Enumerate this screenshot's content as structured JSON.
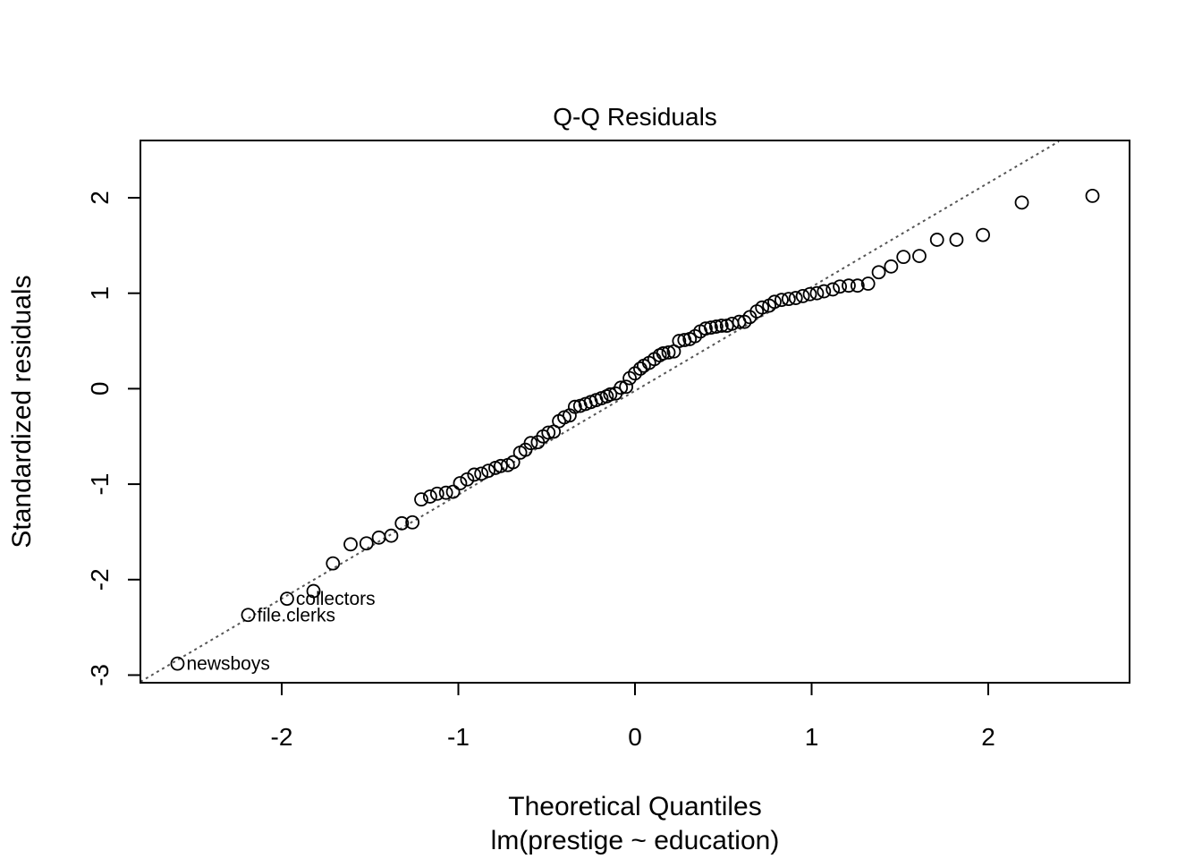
{
  "chart_data": {
    "type": "scatter",
    "title": "Q-Q Residuals",
    "xlabel": "Theoretical Quantiles",
    "sublabel": "lm(prestige ~ education)",
    "ylabel": "Standardized residuals",
    "xlim": [
      -2.8,
      2.8
    ],
    "ylim": [
      -3.08,
      2.6
    ],
    "x_ticks": [
      -2,
      -1,
      0,
      1,
      2
    ],
    "x_tick_labels": [
      "-2",
      "-1",
      "0",
      "1",
      "2"
    ],
    "y_ticks": [
      -3,
      -2,
      -1,
      0,
      1,
      2
    ],
    "y_tick_labels": [
      "-3",
      "-2",
      "-1",
      "0",
      "1",
      "2"
    ],
    "grid": false,
    "reference_line": {
      "style": "dotted",
      "color": "#555555",
      "points": [
        [
          -2.8,
          -3.07
        ],
        [
          2.4,
          2.59
        ]
      ]
    },
    "points": {
      "x": [
        -2.59,
        -2.19,
        -1.97,
        -1.82,
        -1.71,
        -1.61,
        -1.52,
        -1.45,
        -1.38,
        -1.32,
        -1.26,
        -1.21,
        -1.16,
        -1.12,
        -1.07,
        -1.03,
        -0.99,
        -0.95,
        -0.91,
        -0.87,
        -0.83,
        -0.79,
        -0.76,
        -0.72,
        -0.69,
        -0.65,
        -0.62,
        -0.59,
        -0.55,
        -0.52,
        -0.49,
        -0.46,
        -0.43,
        -0.4,
        -0.37,
        -0.34,
        -0.31,
        -0.28,
        -0.25,
        -0.22,
        -0.19,
        -0.16,
        -0.14,
        -0.11,
        -0.08,
        -0.05,
        -0.03,
        0.0,
        0.03,
        0.05,
        0.08,
        0.11,
        0.14,
        0.16,
        0.19,
        0.22,
        0.25,
        0.28,
        0.31,
        0.34,
        0.37,
        0.4,
        0.43,
        0.46,
        0.49,
        0.52,
        0.55,
        0.59,
        0.62,
        0.65,
        0.69,
        0.72,
        0.76,
        0.79,
        0.83,
        0.87,
        0.91,
        0.95,
        0.99,
        1.03,
        1.07,
        1.12,
        1.16,
        1.21,
        1.26,
        1.32,
        1.38,
        1.45,
        1.52,
        1.61,
        1.71,
        1.82,
        1.97,
        2.19,
        2.59
      ],
      "y": [
        -2.88,
        -2.37,
        -2.2,
        -2.12,
        -1.83,
        -1.63,
        -1.62,
        -1.56,
        -1.54,
        -1.41,
        -1.4,
        -1.16,
        -1.13,
        -1.1,
        -1.09,
        -1.08,
        -0.99,
        -0.95,
        -0.9,
        -0.89,
        -0.86,
        -0.83,
        -0.81,
        -0.8,
        -0.77,
        -0.67,
        -0.64,
        -0.57,
        -0.56,
        -0.5,
        -0.46,
        -0.45,
        -0.34,
        -0.3,
        -0.28,
        -0.19,
        -0.18,
        -0.16,
        -0.14,
        -0.12,
        -0.1,
        -0.08,
        -0.06,
        -0.05,
        0.01,
        0.02,
        0.11,
        0.16,
        0.21,
        0.24,
        0.27,
        0.31,
        0.35,
        0.37,
        0.38,
        0.39,
        0.5,
        0.51,
        0.52,
        0.55,
        0.6,
        0.63,
        0.64,
        0.65,
        0.66,
        0.66,
        0.68,
        0.7,
        0.7,
        0.75,
        0.81,
        0.85,
        0.87,
        0.91,
        0.93,
        0.94,
        0.95,
        0.97,
        0.99,
        1.0,
        1.02,
        1.04,
        1.07,
        1.08,
        1.08,
        1.1,
        1.22,
        1.28,
        1.38,
        1.39,
        1.56,
        1.56,
        1.61,
        1.95,
        2.02
      ]
    },
    "labeled_points": [
      {
        "label": "newsboys",
        "x": -2.59,
        "y": -2.88
      },
      {
        "label": "file.clerks",
        "x": -2.19,
        "y": -2.37
      },
      {
        "label": "collectors",
        "x": -1.97,
        "y": -2.2
      }
    ]
  }
}
